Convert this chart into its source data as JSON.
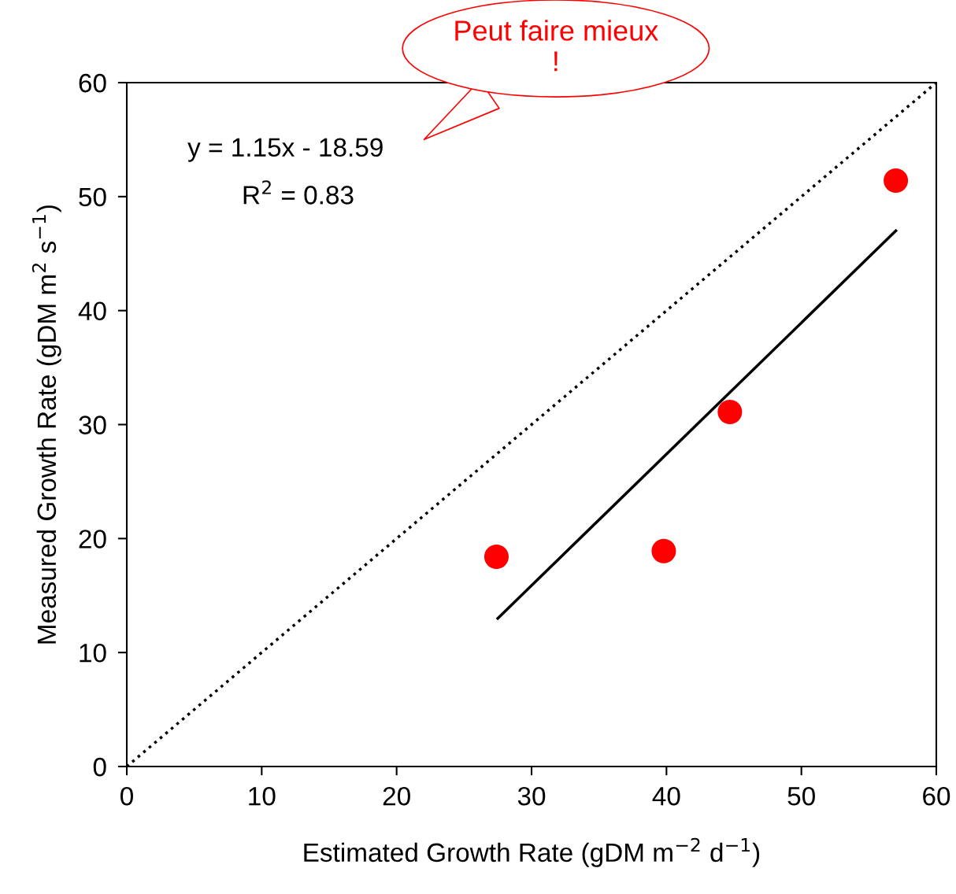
{
  "chart_data": {
    "type": "scatter",
    "xlabel": "Estimated Growth Rate (gDM m$^{−2}$ d$^{−1}$)",
    "ylabel": "Measured Growth Rate (gDM m$^{2}$ s$^{−1}$)",
    "series": [
      {
        "color": "#ff0000",
        "marker": "circle",
        "x": [
          27.4,
          39.8,
          44.7,
          57.0
        ],
        "values": [
          18.4,
          18.9,
          31.1,
          51.4
        ]
      },
      {
        "type": "line",
        "color": "#000000",
        "line_style": "solid",
        "marker": "none",
        "x": [
          27.5,
          57.0
        ],
        "values": [
          13.0,
          47.0
        ]
      },
      {
        "type": "line",
        "color": "#000000",
        "line_style": "dotted",
        "marker": "none",
        "x": [
          0,
          60
        ],
        "values": [
          0,
          60
        ]
      }
    ],
    "annotations": [
      "y = 1.15x - 18.59",
      "R$^{2}$ = 0.83",
      "Peut faire mieux\n!"
    ],
    "xlim": [
      0,
      60
    ],
    "ylim": [
      0,
      60
    ],
    "xticks": [
      0,
      10,
      20,
      30,
      40,
      50,
      60
    ],
    "yticks": [
      0,
      10,
      20,
      30,
      40,
      50,
      60
    ],
    "grid": false,
    "legend": false
  }
}
